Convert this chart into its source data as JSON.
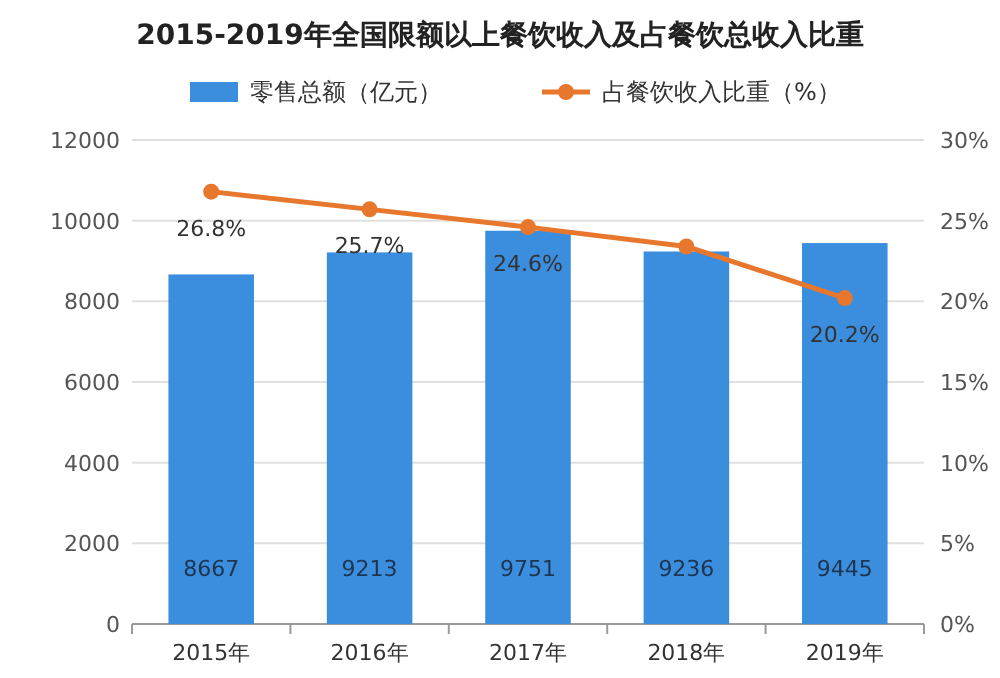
{
  "chart_data": {
    "type": "bar",
    "title": "2015-2019年全国限额以上餐饮收入及占餐饮总收入比重",
    "categories": [
      "2015年",
      "2016年",
      "2017年",
      "2018年",
      "2019年"
    ],
    "series": [
      {
        "name": "零售总额（亿元）",
        "color": "#3b8ede",
        "values": [
          8667,
          9213,
          9751,
          9236,
          9445
        ],
        "value_labels": [
          "8667",
          "9213",
          "9751",
          "9236",
          "9445"
        ]
      },
      {
        "name": "占餐饮收入比重（%）",
        "type": "line",
        "axis": "y2",
        "marker": "circle",
        "color": "#e8772e",
        "values": [
          26.8,
          25.7,
          24.6,
          23.4,
          20.2
        ],
        "value_labels": [
          "26.8%",
          "25.7%",
          "24.6%",
          null,
          "20.2%"
        ]
      }
    ],
    "ylim": [
      0,
      12000
    ],
    "yticks": [
      0,
      2000,
      4000,
      6000,
      8000,
      10000,
      12000
    ],
    "y2lim": [
      0,
      30
    ],
    "y2ticks": [
      {
        "value": 0,
        "label": "0%"
      },
      {
        "value": 5,
        "label": "5%"
      },
      {
        "value": 10,
        "label": "10%"
      },
      {
        "value": 15,
        "label": "15%"
      },
      {
        "value": 20,
        "label": "20%"
      },
      {
        "value": 25,
        "label": "25%"
      },
      {
        "value": 30,
        "label": "30%"
      }
    ],
    "grid": "y",
    "legend": "top"
  }
}
